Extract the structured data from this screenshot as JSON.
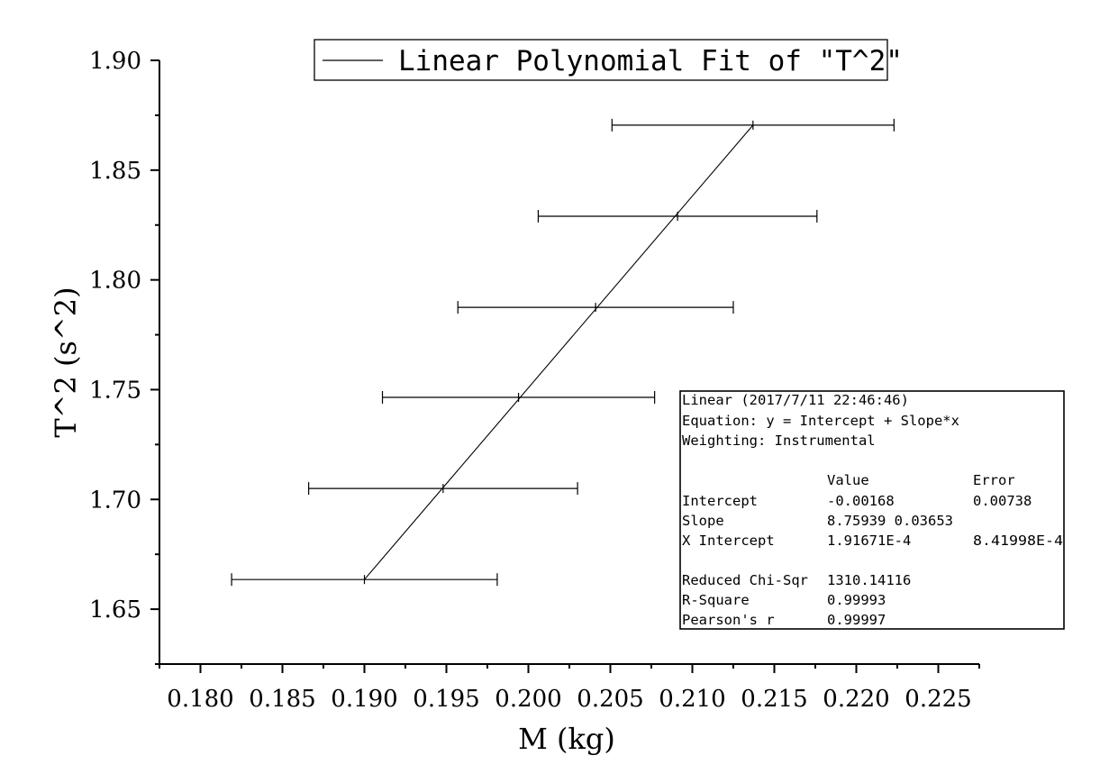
{
  "chart_data": {
    "type": "line",
    "title": "",
    "xlabel": "M (kg)",
    "ylabel": "T^2 (s^2)",
    "xlim": [
      0.1775,
      0.2275
    ],
    "ylim": [
      1.625,
      1.9
    ],
    "x_ticks": [
      0.18,
      0.185,
      0.19,
      0.195,
      0.2,
      0.205,
      0.21,
      0.215,
      0.22,
      0.225
    ],
    "x_tick_labels": [
      "0.180",
      "0.185",
      "0.190",
      "0.195",
      "0.200",
      "0.205",
      "0.210",
      "0.215",
      "0.220",
      "0.225"
    ],
    "y_ticks": [
      1.65,
      1.7,
      1.75,
      1.8,
      1.85,
      1.9
    ],
    "y_tick_labels": [
      "1.65",
      "1.70",
      "1.75",
      "1.80",
      "1.85",
      "1.90"
    ],
    "grid": false,
    "legend": {
      "position": "top",
      "entries": [
        "Linear Polynomial Fit of \"T^2\""
      ]
    },
    "series": [
      {
        "x": [
          0.19,
          0.1948,
          0.1994,
          0.2041,
          0.2091,
          0.2137
        ],
        "y": [
          1.6635,
          1.705,
          1.7465,
          1.7875,
          1.829,
          1.8705
        ],
        "x_error": [
          0.0081,
          0.0082,
          0.0083,
          0.0084,
          0.0085,
          0.0086
        ]
      }
    ],
    "fit_line": {
      "x": [
        0.19,
        0.2137
      ],
      "y": [
        1.6635,
        1.8705
      ]
    },
    "stats_box": {
      "position": "bottom-right",
      "lines": [
        "Linear (2017/7/11 22:46:46)",
        "Equation: y = Intercept + Slope*x",
        "Weighting: Instrumental"
      ],
      "header": [
        "",
        "Value",
        "Error"
      ],
      "rows": [
        [
          "Intercept",
          "-0.00168",
          "0.00738"
        ],
        [
          "Slope",
          "8.75939 0.03653",
          ""
        ],
        [
          "X Intercept",
          "1.91671E-4",
          "8.41998E-4"
        ]
      ],
      "summary": [
        [
          "Reduced Chi-Sqr",
          "1310.14116"
        ],
        [
          "R-Square",
          "0.99993"
        ],
        [
          "Pearson's r",
          "0.99997"
        ]
      ]
    }
  }
}
